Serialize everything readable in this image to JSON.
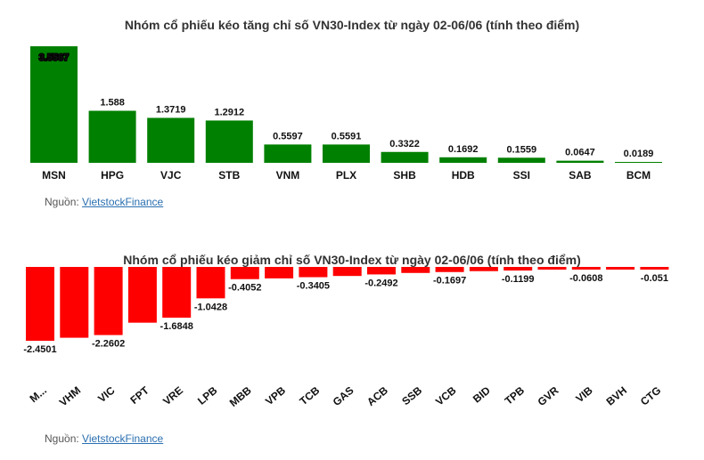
{
  "top": {
    "title": "Nhóm cổ phiếu kéo tăng chỉ số VN30-Index từ ngày 02-06/06 (tính theo điểm)",
    "source_label": "Nguồn: ",
    "source_link": "VietstockFinance"
  },
  "bottom": {
    "title": "Nhóm cổ phiếu kéo giảm chỉ số VN30-Index từ ngày 02-06/06 (tính theo điểm)",
    "source_label": "Nguồn: ",
    "source_link": "VietstockFinance"
  },
  "colors": {
    "up": "#008000",
    "down": "#ff0000"
  },
  "chart_data": [
    {
      "type": "bar",
      "title": "Nhóm cổ phiếu kéo tăng chỉ số VN30-Index từ ngày 02-06/06 (tính theo điểm)",
      "categories": [
        "MSN",
        "HPG",
        "VJC",
        "STB",
        "VNM",
        "PLX",
        "SHB",
        "HDB",
        "SSI",
        "SAB",
        "BCM"
      ],
      "values": [
        3.5567,
        1.588,
        1.3719,
        1.2912,
        0.5597,
        0.5591,
        0.3322,
        0.1692,
        0.1559,
        0.0647,
        0.0189
      ],
      "value_labels": [
        "3.5567",
        "1.588",
        "1.3719",
        "1.2912",
        "0.5597",
        "0.5591",
        "0.3322",
        "0.1692",
        "0.1559",
        "0.0647",
        "0.0189"
      ],
      "ylim": [
        0,
        3.5567
      ],
      "grid": false,
      "legend": "none"
    },
    {
      "type": "bar",
      "title": "Nhóm cổ phiếu kéo giảm chỉ số VN30-Index từ ngày 02-06/06 (tính theo điểm)",
      "categories": [
        "M...",
        "VHM",
        "VIC",
        "FPT",
        "VRE",
        "LPB",
        "MBB",
        "VPB",
        "TCB",
        "GAS",
        "ACB",
        "SSB",
        "VCB",
        "BID",
        "TPB",
        "GVR",
        "VIB",
        "BVH",
        "CTG"
      ],
      "values": [
        -2.4501,
        -2.35,
        -2.2602,
        -1.85,
        -1.6848,
        -1.0428,
        -0.4052,
        -0.38,
        -0.3405,
        -0.3,
        -0.2492,
        -0.2,
        -0.1697,
        -0.14,
        -0.1199,
        -0.09,
        -0.0608,
        -0.055,
        -0.051
      ],
      "value_labels": [
        "-2.4501",
        "",
        "-2.2602",
        "",
        "-1.6848",
        "-1.0428",
        "-0.4052",
        "",
        "-0.3405",
        "",
        "-0.2492",
        "",
        "-0.1697",
        "",
        "-0.1199",
        "",
        "-0.0608",
        "",
        "-0.051"
      ],
      "ylim": [
        -2.4501,
        0
      ],
      "grid": false,
      "legend": "none"
    }
  ]
}
